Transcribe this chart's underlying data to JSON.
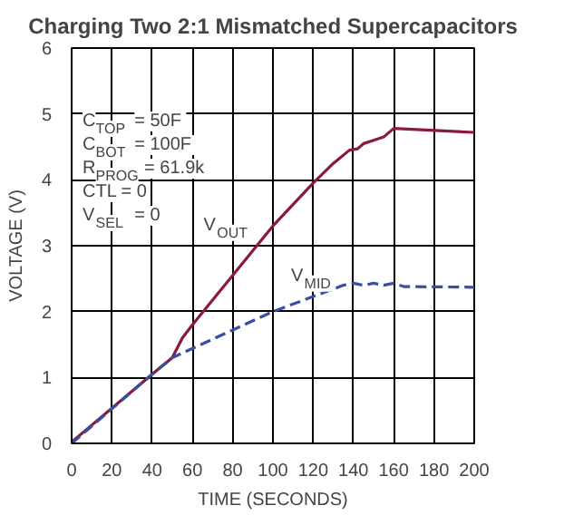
{
  "chart_data": {
    "type": "line",
    "title": "Charging Two 2:1 Mismatched Supercapacitors",
    "xlabel": "TIME (SECONDS)",
    "ylabel": "VOLTAGE (V)",
    "xlim": [
      0,
      200
    ],
    "ylim": [
      0,
      6
    ],
    "xticks": [
      0,
      20,
      40,
      60,
      80,
      100,
      120,
      140,
      160,
      180,
      200
    ],
    "yticks": [
      0,
      1,
      2,
      3,
      4,
      5,
      6
    ],
    "grid": true,
    "legend": false,
    "series": [
      {
        "name": "V$_{OUT}$",
        "color": "#8b1a3a",
        "line_style": "solid",
        "x": [
          0,
          40,
          50,
          55,
          60,
          80,
          100,
          120,
          130,
          138,
          142,
          145,
          150,
          155,
          160,
          200
        ],
        "values": [
          0.02,
          1.05,
          1.3,
          1.6,
          1.8,
          2.55,
          3.3,
          3.95,
          4.25,
          4.45,
          4.47,
          4.55,
          4.6,
          4.65,
          4.78,
          4.72
        ]
      },
      {
        "name": "V$_{MID}$",
        "color": "#3a4fa0",
        "line_style": "dashed",
        "x": [
          0,
          40,
          50,
          100,
          135,
          140,
          145,
          150,
          155,
          160,
          165,
          200
        ],
        "values": [
          0,
          1.05,
          1.3,
          2.0,
          2.4,
          2.43,
          2.4,
          2.43,
          2.4,
          2.43,
          2.38,
          2.37
        ]
      }
    ],
    "annotations": [
      "C$_{TOP}$ = 50F",
      "C$_{BOT}$ = 100F",
      "R$_{PROG}$ = 61.9k",
      "CTL = 0",
      "V$_{SEL}$ = 0"
    ]
  }
}
